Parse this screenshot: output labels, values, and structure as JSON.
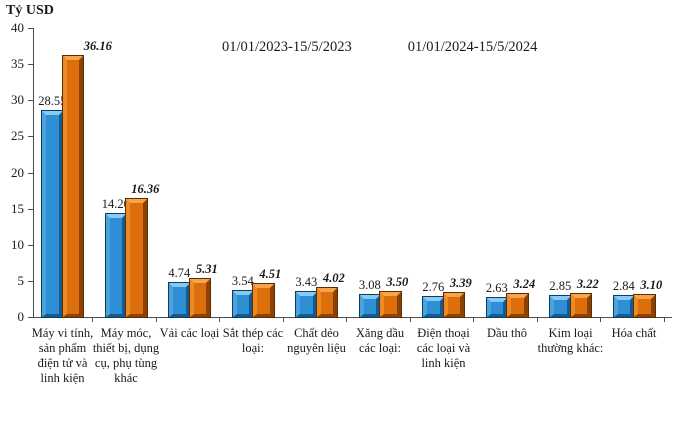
{
  "chart": {
    "unit_label": "Tỷ USD"
  },
  "chart_data": {
    "type": "bar",
    "title": "",
    "xlabel": "",
    "ylabel": "Tỷ USD",
    "ylim": [
      0,
      40
    ],
    "y_ticks": [
      0,
      5,
      10,
      15,
      20,
      25,
      30,
      35,
      40
    ],
    "grid": false,
    "legend_position": "top-center",
    "value_labels_shown": true,
    "categories": [
      "Máy vi tính, sản phẩm điện tử và linh kiện",
      "Máy móc, thiết bị, dụng cụ, phụ tùng khác",
      "Vải các loại",
      "Sắt thép các loại:",
      "Chất dẻo nguyên liệu",
      "Xăng dầu các loại:",
      "Điện thoại các loại và linh kiện",
      "Dầu thô",
      "Kim loại thường khác:",
      "Hóa chất"
    ],
    "series": [
      {
        "name": "01/01/2023-15/5/2023",
        "color": "#2E8FD4",
        "color_light": "#85CBF3",
        "color_mid": "#4BA3DE",
        "color_dark": "#135C92",
        "color_edge": "#0C3C61",
        "values": [
          28.55,
          14.2,
          4.74,
          3.54,
          3.43,
          3.08,
          2.76,
          2.63,
          2.85,
          2.84
        ]
      },
      {
        "name": "01/01/2024-15/5/2024",
        "color": "#DC6E0B",
        "color_light": "#F9A44B",
        "color_mid": "#EE8A26",
        "color_dark": "#8A4305",
        "color_edge": "#5C2D03",
        "values": [
          36.16,
          16.36,
          5.31,
          4.51,
          4.02,
          3.5,
          3.39,
          3.24,
          3.22,
          3.1
        ]
      }
    ]
  }
}
